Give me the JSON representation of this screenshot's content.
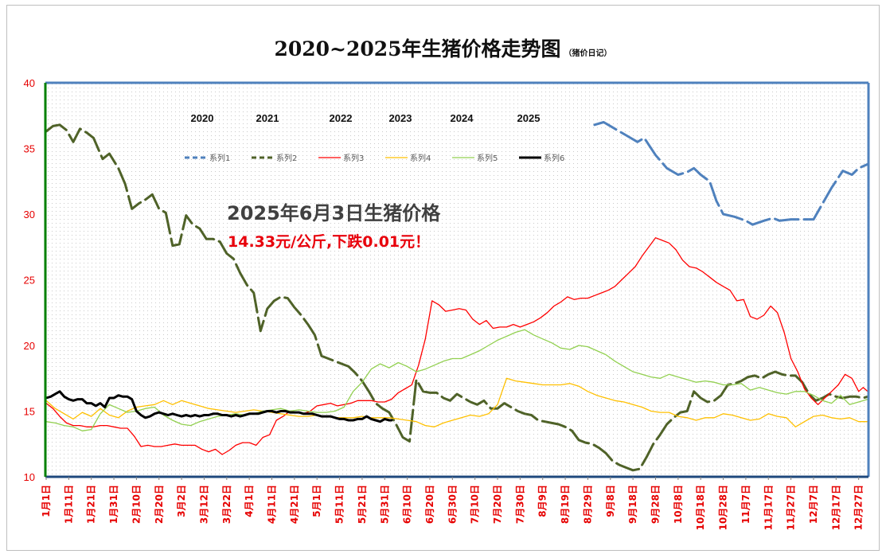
{
  "chart_data": {
    "type": "line",
    "title": "2020~2025年生猪价格走势图",
    "title_note": "（猪价日记）",
    "ylim": [
      10,
      40
    ],
    "y_ticks": [
      "10",
      "15",
      "20",
      "25",
      "30",
      "35",
      "40"
    ],
    "x_ticks": [
      "1月1日",
      "1月11日",
      "1月21日",
      "1月31日",
      "2月10日",
      "2月20日",
      "3月2日",
      "3月12日",
      "3月22日",
      "4月1日",
      "4月11日",
      "4月21日",
      "5月1日",
      "5月11日",
      "5月21日",
      "5月31日",
      "6月10日",
      "6月20日",
      "6月30日",
      "7月10日",
      "7月20日",
      "7月30日",
      "8月9日",
      "8月19日",
      "8月29日",
      "9月8日",
      "9月18日",
      "9月28日",
      "10月8日",
      "10月18日",
      "10月28日",
      "11月7日",
      "11月17日",
      "11月27日",
      "12月7日",
      "12月17日",
      "12月27日"
    ],
    "year_labels": [
      "2020",
      "2021",
      "2022",
      "2023",
      "2024",
      "2025"
    ],
    "legend_position": "top",
    "grid": "dotted",
    "series": [
      {
        "name": "系列1",
        "color": "#4f81bd",
        "dash": "dash",
        "width": 3,
        "x": [
          243,
          247,
          252,
          257,
          262,
          265,
          270,
          275,
          280,
          284,
          287,
          290,
          294,
          297,
          300,
          305,
          310,
          313,
          318,
          322,
          325,
          330,
          335,
          340,
          344,
          348,
          353,
          357,
          360,
          364
        ],
        "y": [
          36.8,
          37.0,
          36.5,
          36.0,
          35.5,
          35.8,
          34.5,
          33.5,
          33.0,
          33.2,
          33.5,
          33.0,
          32.5,
          31.0,
          30.0,
          29.8,
          29.5,
          29.2,
          29.5,
          29.7,
          29.5,
          29.6,
          29.6,
          29.6,
          30.8,
          32.0,
          33.3,
          33.0,
          33.5,
          33.8
        ]
      },
      {
        "name": "系列2",
        "color": "#4f6228",
        "dash": "dash",
        "width": 3,
        "x": [
          0,
          3,
          6,
          9,
          12,
          15,
          18,
          21,
          25,
          28,
          32,
          35,
          38,
          41,
          44,
          47,
          50,
          53,
          56,
          59,
          62,
          65,
          68,
          71,
          74,
          77,
          80,
          83,
          86,
          89,
          92,
          95,
          98,
          101,
          104,
          107,
          110,
          113,
          116,
          119,
          122,
          125,
          128,
          131,
          134,
          137,
          140,
          143,
          146,
          149,
          152,
          155,
          158,
          161,
          164,
          167,
          170,
          173,
          176,
          179,
          182,
          185,
          188,
          191,
          194,
          197,
          200,
          203,
          206,
          209,
          212,
          215,
          218,
          221,
          224,
          227,
          230,
          233,
          236,
          239,
          242,
          245,
          248,
          251,
          254,
          257,
          260,
          263,
          266,
          269,
          272,
          275,
          278,
          281,
          284,
          287,
          290,
          293,
          296,
          299,
          302,
          305,
          308,
          311,
          314,
          317,
          320,
          323,
          326,
          329,
          332,
          335,
          338,
          341,
          344,
          347,
          350,
          353,
          356,
          359,
          362,
          364
        ],
        "y": [
          36.3,
          36.7,
          36.8,
          36.4,
          35.5,
          36.5,
          36.2,
          35.8,
          34.2,
          34.6,
          33.5,
          32.3,
          30.4,
          30.8,
          31.1,
          31.5,
          30.4,
          30.1,
          27.6,
          27.7,
          29.9,
          29.2,
          28.9,
          28.1,
          28.1,
          27.9,
          27.0,
          26.6,
          25.5,
          24.6,
          24.0,
          21.1,
          22.8,
          23.4,
          23.7,
          23.6,
          22.9,
          22.3,
          21.6,
          20.8,
          19.2,
          19.0,
          18.8,
          18.6,
          18.4,
          17.9,
          17.3,
          16.5,
          15.6,
          15.2,
          14.9,
          14.0,
          13.0,
          12.7,
          17.4,
          16.5,
          16.4,
          16.4,
          16.0,
          15.8,
          16.3,
          16.0,
          15.7,
          15.5,
          15.8,
          15.2,
          15.2,
          15.6,
          15.3,
          15.0,
          14.8,
          14.7,
          14.3,
          14.2,
          14.1,
          14.0,
          13.8,
          13.5,
          12.8,
          12.6,
          12.5,
          12.2,
          11.8,
          11.2,
          10.9,
          10.7,
          10.5,
          10.6,
          11.5,
          12.5,
          13.2,
          14.0,
          14.5,
          14.9,
          15.0,
          16.5,
          16.0,
          15.7,
          15.8,
          16.2,
          17.0,
          17.1,
          17.3,
          17.6,
          17.7,
          17.5,
          17.8,
          18.0,
          17.8,
          17.7,
          17.7,
          17.2,
          16.3,
          15.8,
          16.0,
          16.3,
          16.1,
          16.0,
          16.1,
          16.1,
          16.0,
          16.1
        ]
      },
      {
        "name": "系列3",
        "color": "#ff0000",
        "dash": "solid",
        "width": 1.3,
        "x": [
          0,
          3,
          6,
          9,
          12,
          15,
          18,
          21,
          24,
          27,
          30,
          33,
          36,
          39,
          42,
          45,
          48,
          51,
          54,
          57,
          60,
          63,
          66,
          69,
          72,
          75,
          78,
          81,
          84,
          87,
          90,
          93,
          96,
          99,
          102,
          105,
          108,
          111,
          114,
          117,
          120,
          123,
          126,
          129,
          132,
          135,
          138,
          141,
          144,
          147,
          150,
          153,
          156,
          159,
          162,
          165,
          168,
          171,
          174,
          177,
          180,
          183,
          186,
          189,
          192,
          195,
          198,
          201,
          204,
          207,
          210,
          213,
          216,
          219,
          222,
          225,
          228,
          231,
          234,
          237,
          240,
          243,
          246,
          249,
          252,
          255,
          258,
          261,
          264,
          267,
          270,
          273,
          276,
          279,
          282,
          285,
          288,
          291,
          294,
          297,
          300,
          303,
          306,
          309,
          312,
          315,
          318,
          321,
          324,
          327,
          330,
          333,
          336,
          339,
          342,
          345,
          348,
          351,
          354,
          357,
          360,
          362,
          364
        ],
        "y": [
          15.6,
          15.2,
          14.6,
          14.1,
          13.9,
          13.9,
          13.8,
          13.8,
          13.9,
          13.9,
          13.8,
          13.7,
          13.7,
          13.1,
          12.3,
          12.4,
          12.3,
          12.3,
          12.4,
          12.5,
          12.4,
          12.4,
          12.4,
          12.1,
          11.9,
          12.1,
          11.7,
          12.0,
          12.4,
          12.6,
          12.6,
          12.4,
          13.0,
          13.2,
          14.3,
          14.6,
          15.0,
          14.9,
          14.8,
          15.0,
          15.4,
          15.5,
          15.6,
          15.4,
          15.5,
          15.6,
          15.8,
          15.8,
          15.8,
          15.7,
          15.7,
          15.9,
          16.4,
          16.7,
          17.0,
          18.5,
          20.5,
          23.4,
          23.1,
          22.6,
          22.7,
          22.8,
          22.7,
          22.0,
          21.6,
          21.9,
          21.3,
          21.4,
          21.4,
          21.6,
          21.4,
          21.6,
          21.8,
          22.1,
          22.5,
          23.0,
          23.3,
          23.7,
          23.5,
          23.6,
          23.6,
          23.8,
          24.0,
          24.2,
          24.5,
          25.0,
          25.5,
          26.0,
          26.8,
          27.5,
          28.2,
          28.0,
          27.8,
          27.3,
          26.5,
          26.0,
          25.9,
          25.6,
          25.2,
          24.8,
          24.5,
          24.2,
          23.4,
          23.5,
          22.2,
          22.0,
          22.3,
          23.0,
          22.5,
          21.0,
          19.0,
          18.0,
          16.7,
          16.0,
          15.5,
          16.0,
          16.5,
          17.0,
          17.8,
          17.5,
          16.5,
          16.8,
          16.5
        ]
      },
      {
        "name": "系列4",
        "color": "#ffc000",
        "dash": "solid",
        "width": 1.3,
        "x": [
          0,
          4,
          8,
          12,
          16,
          20,
          24,
          28,
          32,
          36,
          40,
          44,
          48,
          52,
          56,
          60,
          64,
          68,
          72,
          76,
          80,
          84,
          88,
          92,
          96,
          100,
          104,
          108,
          112,
          116,
          120,
          124,
          128,
          132,
          136,
          140,
          144,
          148,
          152,
          156,
          160,
          164,
          168,
          172,
          176,
          180,
          184,
          188,
          192,
          196,
          200,
          204,
          208,
          212,
          216,
          220,
          224,
          228,
          232,
          236,
          240,
          244,
          248,
          252,
          256,
          260,
          264,
          268,
          272,
          276,
          280,
          284,
          288,
          292,
          296,
          300,
          304,
          308,
          312,
          316,
          320,
          324,
          328,
          332,
          336,
          340,
          344,
          348,
          352,
          356,
          360,
          364
        ],
        "y": [
          15.8,
          15.2,
          14.8,
          14.4,
          14.9,
          14.6,
          15.2,
          14.7,
          14.5,
          15.0,
          15.3,
          15.4,
          15.5,
          15.8,
          15.5,
          15.8,
          15.6,
          15.4,
          15.2,
          15.1,
          15.0,
          14.9,
          15.0,
          15.1,
          15.0,
          14.9,
          14.8,
          14.7,
          14.6,
          14.6,
          14.7,
          14.6,
          14.5,
          14.5,
          14.5,
          14.6,
          14.5,
          14.5,
          14.5,
          14.4,
          14.3,
          14.2,
          13.9,
          13.8,
          14.1,
          14.3,
          14.5,
          14.7,
          14.6,
          14.8,
          15.5,
          17.5,
          17.3,
          17.2,
          17.1,
          17.0,
          17.0,
          17.0,
          17.1,
          16.9,
          16.5,
          16.2,
          16.0,
          15.8,
          15.7,
          15.5,
          15.3,
          15.0,
          14.9,
          14.9,
          14.6,
          14.5,
          14.3,
          14.5,
          14.5,
          14.8,
          14.7,
          14.5,
          14.3,
          14.4,
          14.8,
          14.6,
          14.5,
          13.8,
          14.2,
          14.6,
          14.7,
          14.5,
          14.4,
          14.5,
          14.2,
          14.2
        ]
      },
      {
        "name": "系列5",
        "color": "#92d050",
        "dash": "solid",
        "width": 1.3,
        "x": [
          0,
          4,
          8,
          12,
          16,
          20,
          24,
          28,
          32,
          36,
          40,
          44,
          48,
          52,
          56,
          60,
          64,
          68,
          72,
          76,
          80,
          84,
          88,
          92,
          96,
          100,
          104,
          108,
          112,
          116,
          120,
          124,
          128,
          132,
          136,
          140,
          144,
          148,
          152,
          156,
          160,
          164,
          168,
          172,
          176,
          180,
          184,
          188,
          192,
          196,
          200,
          204,
          208,
          212,
          216,
          220,
          224,
          228,
          232,
          236,
          240,
          244,
          248,
          252,
          256,
          260,
          264,
          268,
          272,
          276,
          280,
          284,
          288,
          292,
          296,
          300,
          304,
          308,
          312,
          316,
          320,
          324,
          328,
          332,
          336,
          340,
          344,
          348,
          352,
          356,
          360,
          364
        ],
        "y": [
          14.2,
          14.1,
          13.9,
          13.8,
          13.5,
          13.6,
          14.8,
          15.5,
          15.2,
          14.9,
          15.0,
          15.2,
          15.3,
          14.7,
          14.3,
          14.0,
          13.9,
          14.2,
          14.4,
          14.6,
          14.7,
          14.8,
          14.7,
          14.8,
          15.0,
          15.1,
          15.2,
          15.0,
          15.1,
          15.0,
          14.9,
          14.9,
          15.0,
          15.3,
          16.5,
          17.2,
          18.2,
          18.6,
          18.3,
          18.7,
          18.4,
          18.0,
          18.2,
          18.5,
          18.8,
          19.0,
          19.0,
          19.3,
          19.6,
          20.0,
          20.4,
          20.7,
          21.0,
          21.2,
          20.8,
          20.5,
          20.2,
          19.8,
          19.7,
          20.0,
          19.9,
          19.6,
          19.3,
          18.8,
          18.4,
          18.0,
          17.8,
          17.6,
          17.5,
          17.8,
          17.6,
          17.4,
          17.2,
          17.3,
          17.2,
          17.0,
          17.0,
          17.1,
          16.6,
          16.8,
          16.6,
          16.4,
          16.3,
          16.5,
          16.5,
          16.2,
          15.8,
          15.6,
          16.2,
          15.5,
          15.7,
          15.9
        ]
      },
      {
        "name": "系列6",
        "color": "#000000",
        "dash": "solid",
        "width": 3,
        "x": [
          0,
          2,
          4,
          6,
          8,
          10,
          12,
          14,
          16,
          18,
          20,
          22,
          24,
          26,
          28,
          30,
          32,
          34,
          36,
          38,
          40,
          42,
          44,
          46,
          48,
          50,
          52,
          54,
          56,
          58,
          60,
          62,
          64,
          66,
          68,
          70,
          72,
          74,
          76,
          78,
          80,
          82,
          84,
          86,
          88,
          90,
          92,
          94,
          96,
          98,
          100,
          102,
          104,
          106,
          108,
          110,
          112,
          114,
          116,
          118,
          120,
          122,
          124,
          126,
          128,
          130,
          132,
          134,
          136,
          138,
          140,
          142,
          144,
          146,
          148,
          150,
          152,
          153
        ],
        "y": [
          16.0,
          16.1,
          16.3,
          16.5,
          16.1,
          15.9,
          15.8,
          15.9,
          15.9,
          15.6,
          15.6,
          15.4,
          15.6,
          15.3,
          16.0,
          16.0,
          16.2,
          16.1,
          16.1,
          15.9,
          15.0,
          14.7,
          14.5,
          14.6,
          14.8,
          14.9,
          14.8,
          14.7,
          14.8,
          14.7,
          14.6,
          14.7,
          14.6,
          14.7,
          14.6,
          14.7,
          14.7,
          14.8,
          14.8,
          14.7,
          14.7,
          14.6,
          14.7,
          14.6,
          14.7,
          14.8,
          14.8,
          14.8,
          14.9,
          15.0,
          15.0,
          14.9,
          15.0,
          15.0,
          14.9,
          14.9,
          14.9,
          14.8,
          14.8,
          14.8,
          14.7,
          14.6,
          14.6,
          14.6,
          14.5,
          14.4,
          14.4,
          14.3,
          14.3,
          14.4,
          14.4,
          14.6,
          14.4,
          14.3,
          14.2,
          14.4,
          14.3,
          14.3
        ]
      }
    ]
  },
  "annotations": {
    "headline": "2025年6月3日生猪价格",
    "subline": "14.33元/公斤,下跌0.01元！"
  }
}
